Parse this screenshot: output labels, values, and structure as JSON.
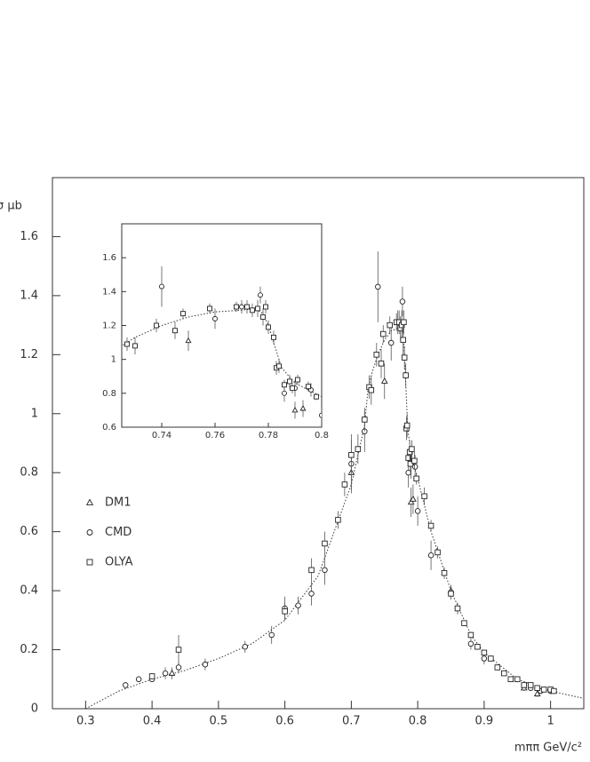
{
  "chart_data": {
    "type": "scatter",
    "xlabel": "mππ GeV/c²",
    "ylabel": "σ μb",
    "xlim": [
      0.25,
      1.05
    ],
    "ylim": [
      0,
      1.8
    ],
    "xticks": [
      0.3,
      0.4,
      0.5,
      0.6,
      0.7,
      0.8,
      0.9,
      1
    ],
    "yticks": [
      0,
      0.2,
      0.4,
      0.6,
      0.8,
      1,
      1.2,
      1.4,
      1.6
    ],
    "legend": "left",
    "series": [
      {
        "name": "DM1",
        "marker": "triangle",
        "color": "#222222",
        "x": [
          0.43,
          0.7,
          0.75,
          0.79,
          0.793,
          0.85,
          0.96,
          0.98
        ],
        "values": [
          0.12,
          0.8,
          1.11,
          0.7,
          0.71,
          0.4,
          0.07,
          0.05
        ],
        "errors": [
          0.02,
          0.06,
          0.06,
          0.05,
          0.05,
          0.02,
          0.01,
          0.01
        ]
      },
      {
        "name": "CMD",
        "marker": "circle",
        "color": "#222222",
        "x": [
          0.36,
          0.38,
          0.4,
          0.42,
          0.44,
          0.48,
          0.54,
          0.58,
          0.6,
          0.62,
          0.64,
          0.66,
          0.7,
          0.72,
          0.74,
          0.76,
          0.77,
          0.777,
          0.786,
          0.79,
          0.796,
          0.8,
          0.82,
          0.86,
          0.88,
          0.9,
          0.97,
          0.985,
          1.0
        ],
        "values": [
          0.08,
          0.1,
          0.1,
          0.12,
          0.14,
          0.15,
          0.21,
          0.25,
          0.34,
          0.35,
          0.39,
          0.47,
          0.83,
          0.94,
          1.43,
          1.24,
          1.31,
          1.38,
          0.8,
          0.83,
          0.82,
          0.67,
          0.52,
          0.34,
          0.22,
          0.17,
          0.07,
          0.06,
          0.06
        ],
        "errors": [
          0.01,
          0.01,
          0.01,
          0.02,
          0.02,
          0.02,
          0.02,
          0.03,
          0.04,
          0.03,
          0.04,
          0.05,
          0.1,
          0.07,
          0.12,
          0.06,
          0.04,
          0.05,
          0.05,
          0.05,
          0.04,
          0.05,
          0.05,
          0.02,
          0.02,
          0.02,
          0.01,
          0.01,
          0.01
        ]
      },
      {
        "name": "OLYA",
        "marker": "square",
        "color": "#222222",
        "x": [
          0.4,
          0.44,
          0.6,
          0.64,
          0.66,
          0.68,
          0.69,
          0.7,
          0.71,
          0.72,
          0.727,
          0.73,
          0.738,
          0.745,
          0.748,
          0.758,
          0.768,
          0.772,
          0.774,
          0.776,
          0.778,
          0.779,
          0.78,
          0.782,
          0.783,
          0.784,
          0.786,
          0.788,
          0.789,
          0.791,
          0.795,
          0.798,
          0.81,
          0.82,
          0.83,
          0.84,
          0.85,
          0.86,
          0.87,
          0.88,
          0.89,
          0.9,
          0.91,
          0.92,
          0.93,
          0.94,
          0.95,
          0.96,
          0.97,
          0.98,
          0.99,
          1.0,
          1.005
        ],
        "values": [
          0.11,
          0.2,
          0.33,
          0.47,
          0.56,
          0.64,
          0.76,
          0.86,
          0.88,
          0.98,
          1.09,
          1.08,
          1.2,
          1.17,
          1.27,
          1.3,
          1.31,
          1.31,
          1.29,
          1.3,
          1.25,
          1.31,
          1.19,
          1.13,
          0.95,
          0.96,
          0.85,
          0.87,
          0.83,
          0.88,
          0.84,
          0.78,
          0.72,
          0.62,
          0.53,
          0.46,
          0.39,
          0.34,
          0.29,
          0.25,
          0.21,
          0.19,
          0.17,
          0.14,
          0.12,
          0.1,
          0.1,
          0.08,
          0.08,
          0.07,
          0.065,
          0.065,
          0.06
        ],
        "errors": [
          0.01,
          0.05,
          0.03,
          0.04,
          0.04,
          0.03,
          0.04,
          0.05,
          0.05,
          0.04,
          0.04,
          0.05,
          0.04,
          0.05,
          0.03,
          0.03,
          0.03,
          0.04,
          0.04,
          0.05,
          0.05,
          0.04,
          0.04,
          0.04,
          0.04,
          0.04,
          0.03,
          0.04,
          0.03,
          0.03,
          0.03,
          0.02,
          0.03,
          0.02,
          0.02,
          0.02,
          0.02,
          0.01,
          0.01,
          0.01,
          0.01,
          0.01,
          0.01,
          0.01,
          0.01,
          0.01,
          0.01,
          0.01,
          0.01,
          0.01,
          0.01,
          0.01,
          0.01
        ]
      }
    ],
    "fit": {
      "style": "dotted",
      "color": "#333333",
      "x": [
        0.3,
        0.35,
        0.4,
        0.45,
        0.5,
        0.55,
        0.6,
        0.65,
        0.7,
        0.72,
        0.725,
        0.73,
        0.74,
        0.75,
        0.76,
        0.77,
        0.775,
        0.778,
        0.78,
        0.783,
        0.785,
        0.79,
        0.8,
        0.82,
        0.85,
        0.88,
        0.9,
        0.95,
        1.0,
        1.05
      ],
      "values": [
        0.0,
        0.06,
        0.1,
        0.13,
        0.17,
        0.22,
        0.3,
        0.45,
        0.76,
        0.96,
        1.08,
        1.13,
        1.2,
        1.25,
        1.28,
        1.29,
        1.3,
        1.27,
        1.2,
        1.05,
        0.95,
        0.86,
        0.78,
        0.6,
        0.4,
        0.25,
        0.19,
        0.1,
        0.06,
        0.035
      ]
    },
    "inset": {
      "xlim": [
        0.725,
        0.8
      ],
      "ylim": [
        0.6,
        1.8
      ],
      "xticks": [
        0.74,
        0.76,
        0.78,
        0.8
      ],
      "yticks": [
        0.6,
        0.8,
        1,
        1.2,
        1.4,
        1.6
      ]
    }
  }
}
